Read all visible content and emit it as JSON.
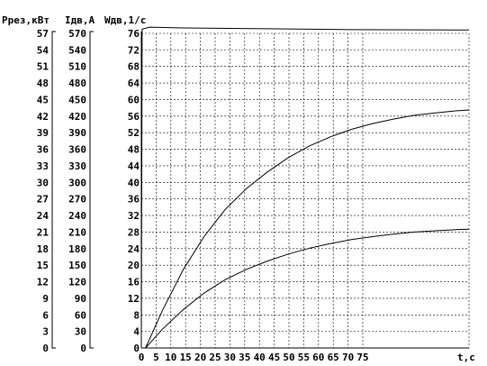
{
  "chart_data": {
    "type": "line",
    "axes": {
      "p": {
        "label": "Ррез,кВт",
        "ticks": [
          "57",
          "54",
          "51",
          "48",
          "45",
          "42",
          "39",
          "36",
          "33",
          "30",
          "27",
          "24",
          "21",
          "18",
          "15",
          "12",
          "9",
          "6",
          "3",
          "0"
        ],
        "ylim": [
          0,
          57
        ]
      },
      "i": {
        "label": "Iдв,А",
        "ticks": [
          "570",
          "540",
          "510",
          "480",
          "450",
          "420",
          "390",
          "360",
          "330",
          "300",
          "270",
          "240",
          "210",
          "180",
          "150",
          "120",
          "90",
          "60",
          "30",
          "0"
        ],
        "ylim": [
          0,
          570
        ]
      },
      "w": {
        "label": "Wдв,1/с",
        "ticks": [
          "76",
          "72",
          "68",
          "64",
          "60",
          "56",
          "52",
          "48",
          "44",
          "40",
          "36",
          "32",
          "28",
          "24",
          "20",
          "16",
          "12",
          "8",
          "4",
          "0"
        ],
        "ylim": [
          0,
          76
        ]
      },
      "x": {
        "label": "t,с",
        "ticks": [
          "0",
          "5",
          "10",
          "15",
          "20",
          "25",
          "30",
          "35",
          "40",
          "45",
          "50",
          "55",
          "60",
          "65",
          "70",
          "75"
        ],
        "xlim": [
          0,
          78
        ]
      }
    },
    "grid": true,
    "series": [
      {
        "axis": "w",
        "style": "near-constant",
        "points": [
          [
            0,
            0
          ],
          [
            0.2,
            77
          ],
          [
            2,
            77.5
          ],
          [
            10,
            77.3
          ],
          [
            30,
            77.1
          ],
          [
            50,
            76.9
          ],
          [
            78,
            76.8
          ]
        ]
      },
      {
        "axis": "w",
        "style": "exponential-rise",
        "points": [
          [
            1,
            0
          ],
          [
            5,
            9
          ],
          [
            10,
            19
          ],
          [
            15,
            27
          ],
          [
            20,
            33.5
          ],
          [
            25,
            38.5
          ],
          [
            30,
            42.5
          ],
          [
            35,
            46
          ],
          [
            40,
            48.8
          ],
          [
            45,
            51
          ],
          [
            50,
            52.8
          ],
          [
            55,
            54.2
          ],
          [
            60,
            55.3
          ],
          [
            65,
            56.2
          ],
          [
            70,
            56.8
          ],
          [
            75,
            57.3
          ],
          [
            78,
            57.5
          ]
        ]
      },
      {
        "axis": "w",
        "style": "exponential-rise",
        "points": [
          [
            1,
            0
          ],
          [
            5,
            4.5
          ],
          [
            10,
            9.3
          ],
          [
            15,
            13.3
          ],
          [
            20,
            16.5
          ],
          [
            25,
            19
          ],
          [
            30,
            21
          ],
          [
            35,
            22.7
          ],
          [
            40,
            24.1
          ],
          [
            45,
            25.2
          ],
          [
            50,
            26.2
          ],
          [
            55,
            26.9
          ],
          [
            60,
            27.5
          ],
          [
            65,
            28
          ],
          [
            70,
            28.3
          ],
          [
            75,
            28.6
          ],
          [
            78,
            28.7
          ]
        ]
      }
    ]
  }
}
